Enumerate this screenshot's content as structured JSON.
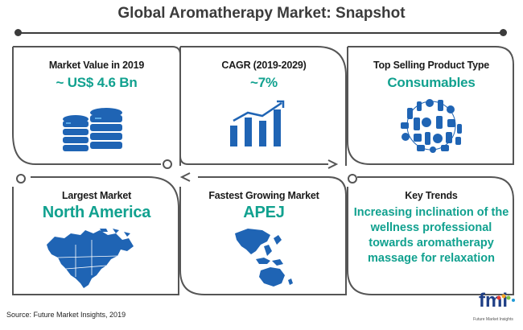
{
  "title": "Global Aromatherapy Market: Snapshot",
  "colors": {
    "accent": "#11a18f",
    "dark": "#1a1a1a",
    "frame": "#555555",
    "icon": "#1f64b4"
  },
  "cards": [
    {
      "head": "Market Value in 2019",
      "value": "~ US$ 4.6 Bn",
      "icon": "database-stack-icon"
    },
    {
      "head": "CAGR (2019-2029)",
      "value": "~7%",
      "icon": "growth-bar-chart-icon"
    },
    {
      "head": "Top Selling Product Type",
      "value": "Consumables",
      "icon": "aromatherapy-products-icon"
    },
    {
      "head": "Largest Market",
      "value": "North America",
      "icon": "north-america-map-icon"
    },
    {
      "head": "Fastest Growing Market",
      "value": "APEJ",
      "icon": "asia-pacific-map-icon"
    },
    {
      "head": "Key Trends",
      "value": "Increasing inclination of the wellness professional towards aromatherapy massage for relaxation"
    }
  ],
  "source": "Source: Future Market Insights, 2019",
  "logo": {
    "text": "fmi",
    "tagline": "Future Market Insights"
  }
}
